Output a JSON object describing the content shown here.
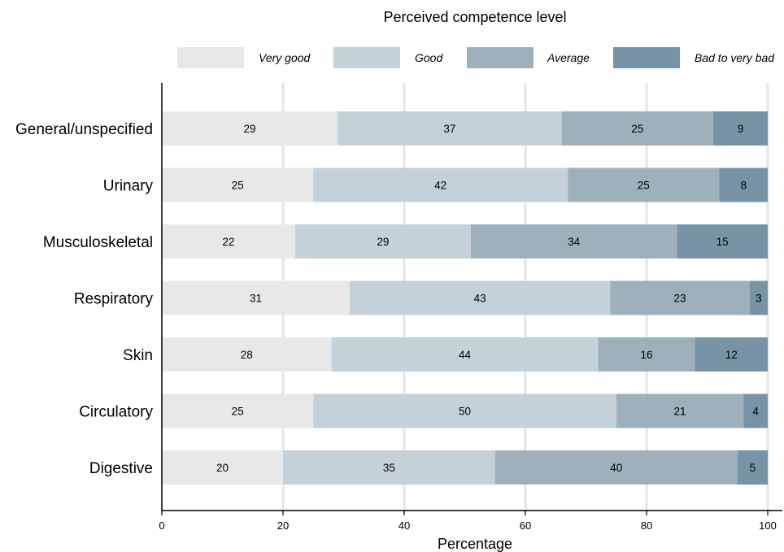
{
  "chart_data": {
    "type": "bar",
    "orientation": "horizontal",
    "stacked": true,
    "legend_title": "Perceived competence level",
    "legend_position": "top",
    "xlabel": "Percentage",
    "ylabel": "",
    "xlim": [
      0,
      100
    ],
    "xticks": [
      "0",
      "20",
      "40",
      "60",
      "80",
      "100"
    ],
    "grid": "vertical",
    "categories": [
      "General/unspecified",
      "Urinary",
      "Musculoskeletal",
      "Respiratory",
      "Skin",
      "Circulatory",
      "Digestive"
    ],
    "series": [
      {
        "name": "Very good",
        "color": "#e8e8e8",
        "values": [
          29,
          25,
          22,
          31,
          28,
          25,
          20
        ]
      },
      {
        "name": "Good",
        "color": "#c4d1d9",
        "values": [
          37,
          42,
          29,
          43,
          44,
          50,
          35
        ]
      },
      {
        "name": "Average",
        "color": "#9eb0bc",
        "values": [
          25,
          25,
          34,
          23,
          16,
          21,
          40
        ]
      },
      {
        "name": "Bad to very bad",
        "color": "#7893a5",
        "values": [
          9,
          8,
          15,
          3,
          12,
          4,
          5
        ]
      }
    ]
  }
}
